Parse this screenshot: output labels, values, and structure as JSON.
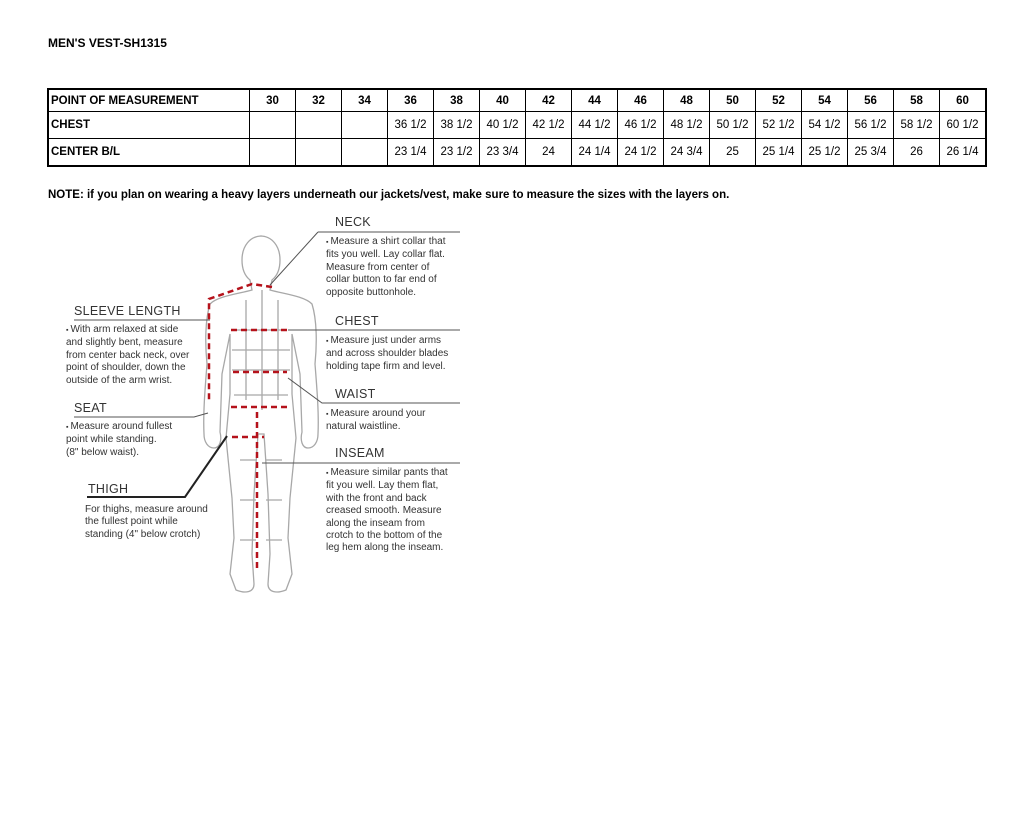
{
  "title": "MEN'S VEST-SH1315",
  "table": {
    "header": [
      "POINT OF MEASUREMENT",
      "30",
      "32",
      "34",
      "36",
      "38",
      "40",
      "42",
      "44",
      "46",
      "48",
      "50",
      "52",
      "54",
      "56",
      "58",
      "60"
    ],
    "rows": [
      [
        "CHEST",
        "",
        "",
        "",
        "36 1/2",
        "38 1/2",
        "40 1/2",
        "42 1/2",
        "44 1/2",
        "46 1/2",
        "48 1/2",
        "50 1/2",
        "52 1/2",
        "54 1/2",
        "56 1/2",
        "58 1/2",
        "60 1/2"
      ],
      [
        "CENTER B/L",
        "",
        "",
        "",
        "23 1/4",
        "23 1/2",
        "23 3/4",
        "24",
        "24 1/4",
        "24 1/2",
        "24 3/4",
        "25",
        "25 1/4",
        "25 1/2",
        "25 3/4",
        "26",
        "26 1/4"
      ]
    ]
  },
  "note": "NOTE: if you plan on wearing a heavy layers underneath our jackets/vest, make sure to measure the sizes with the layers on.",
  "diagram": {
    "neck": {
      "heading": "NECK",
      "text": "Measure a shirt collar that\nfits you well. Lay collar flat.\nMeasure from center of\ncollar button to far end of\nopposite buttonhole."
    },
    "chest": {
      "heading": "CHEST",
      "text": "Measure just under arms\nand across shoulder blades\nholding tape firm and level."
    },
    "waist": {
      "heading": "WAIST",
      "text": "Measure around your\nnatural waistline."
    },
    "inseam": {
      "heading": "INSEAM",
      "text": "Measure similar pants that\nfit you well. Lay them flat,\nwith the front and back\ncreased smooth. Measure\nalong the inseam from\ncrotch to the bottom of the\nleg hem along the inseam."
    },
    "sleeve": {
      "heading": "SLEEVE LENGTH",
      "text": "With arm relaxed at side\nand slightly bent, measure\nfrom center back neck, over\npoint of shoulder, down the\noutside of the arm wrist."
    },
    "seat": {
      "heading": "SEAT",
      "text": "Measure around fullest\npoint while standing.\n(8\" below waist)."
    },
    "thigh": {
      "heading": "THIGH",
      "text": "For thighs, measure around\nthe fullest point while\nstanding (4\" below crotch)"
    },
    "colors": {
      "measure_line": "#b5121b",
      "body_outline": "#a8a8a8"
    }
  }
}
